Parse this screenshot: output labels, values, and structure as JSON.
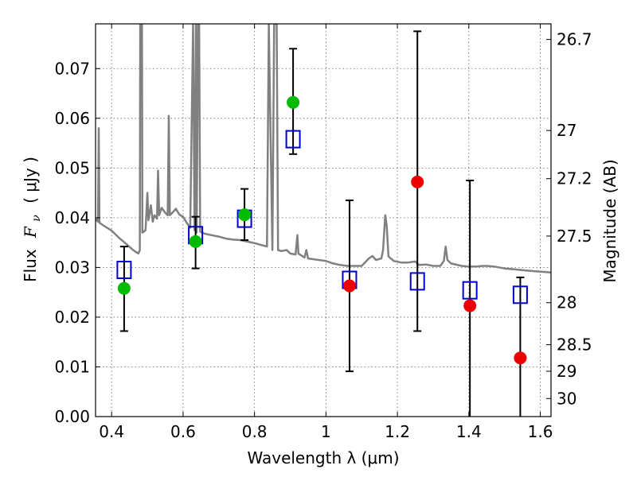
{
  "chart_data": {
    "type": "scatter",
    "xlabel": "Wavelength  λ (μm)",
    "ylabel_text": "Flux",
    "ylabel_var": "F",
    "ylabel_sub": "ν",
    "ylabel_unit": "(  μJy )",
    "y2label": "Magnitude (AB)",
    "xlim": [
      0.355,
      1.63
    ],
    "ylim": [
      0.0,
      0.079
    ],
    "x_ticks": [
      0.4,
      0.6,
      0.8,
      1.0,
      1.2,
      1.4,
      1.6
    ],
    "x_tick_labels": [
      "0.4",
      "0.6",
      "0.8",
      "1",
      "1.2",
      "1.4",
      "1.6"
    ],
    "y_ticks": [
      0.0,
      0.01,
      0.02,
      0.03,
      0.04,
      0.05,
      0.06,
      0.07
    ],
    "y_tick_labels": [
      "0.00",
      "0.01",
      "0.02",
      "0.03",
      "0.04",
      "0.05",
      "0.06",
      "0.07"
    ],
    "mag_ticks": [
      26.7,
      27,
      27.2,
      27.5,
      28,
      28.5,
      29,
      30
    ],
    "mag_tick_labels": [
      "26.7",
      "27",
      "27.2",
      "27.5",
      "28",
      "28.5",
      "29",
      "30"
    ],
    "grid": true,
    "colors": {
      "spectrum": "#808080",
      "model": "#0000cc",
      "green": "#00bb00",
      "red": "#ee0000",
      "error": "#000000"
    },
    "model_points": [
      {
        "x": 0.435,
        "y": 0.0295
      },
      {
        "x": 0.635,
        "y": 0.0365
      },
      {
        "x": 0.772,
        "y": 0.0398
      },
      {
        "x": 0.908,
        "y": 0.0558
      },
      {
        "x": 1.066,
        "y": 0.0275
      },
      {
        "x": 1.256,
        "y": 0.0272
      },
      {
        "x": 1.403,
        "y": 0.0254
      },
      {
        "x": 1.544,
        "y": 0.0245
      }
    ],
    "observed_points": [
      {
        "x": 0.435,
        "y": 0.0258,
        "ylo": 0.0172,
        "yhi": 0.0342,
        "group": "green"
      },
      {
        "x": 0.635,
        "y": 0.0352,
        "ylo": 0.0298,
        "yhi": 0.0402,
        "group": "green"
      },
      {
        "x": 0.772,
        "y": 0.0406,
        "ylo": 0.0355,
        "yhi": 0.0458,
        "group": "green"
      },
      {
        "x": 0.908,
        "y": 0.0632,
        "ylo": 0.0528,
        "yhi": 0.074,
        "group": "green"
      },
      {
        "x": 1.066,
        "y": 0.0263,
        "ylo": 0.0091,
        "yhi": 0.0435,
        "group": "red"
      },
      {
        "x": 1.256,
        "y": 0.0472,
        "ylo": 0.0172,
        "yhi": 0.0775,
        "group": "red"
      },
      {
        "x": 1.403,
        "y": 0.0223,
        "ylo": 0.0,
        "yhi": 0.0475,
        "group": "red"
      },
      {
        "x": 1.544,
        "y": 0.0118,
        "ylo": 0.0,
        "yhi": 0.028,
        "group": "red"
      }
    ],
    "spectrum": [
      [
        0.355,
        0.0398
      ],
      [
        0.362,
        0.0392
      ],
      [
        0.364,
        0.058
      ],
      [
        0.366,
        0.039
      ],
      [
        0.38,
        0.0383
      ],
      [
        0.4,
        0.0374
      ],
      [
        0.42,
        0.036
      ],
      [
        0.44,
        0.0348
      ],
      [
        0.46,
        0.0335
      ],
      [
        0.475,
        0.0328
      ],
      [
        0.479,
        0.0335
      ],
      [
        0.48,
        0.079
      ],
      [
        0.485,
        0.079
      ],
      [
        0.486,
        0.037
      ],
      [
        0.49,
        0.0372
      ],
      [
        0.495,
        0.0375
      ],
      [
        0.5,
        0.045
      ],
      [
        0.503,
        0.0395
      ],
      [
        0.51,
        0.0425
      ],
      [
        0.515,
        0.0392
      ],
      [
        0.52,
        0.0405
      ],
      [
        0.527,
        0.0398
      ],
      [
        0.53,
        0.0495
      ],
      [
        0.533,
        0.0405
      ],
      [
        0.54,
        0.042
      ],
      [
        0.55,
        0.041
      ],
      [
        0.557,
        0.0405
      ],
      [
        0.56,
        0.0605
      ],
      [
        0.563,
        0.0405
      ],
      [
        0.57,
        0.041
      ],
      [
        0.58,
        0.0418
      ],
      [
        0.59,
        0.0406
      ],
      [
        0.6,
        0.0402
      ],
      [
        0.61,
        0.039
      ],
      [
        0.62,
        0.038
      ],
      [
        0.628,
        0.079
      ],
      [
        0.632,
        0.0375
      ],
      [
        0.636,
        0.079
      ],
      [
        0.638,
        0.037
      ],
      [
        0.642,
        0.079
      ],
      [
        0.645,
        0.079
      ],
      [
        0.648,
        0.0372
      ],
      [
        0.66,
        0.0368
      ],
      [
        0.68,
        0.0365
      ],
      [
        0.7,
        0.0362
      ],
      [
        0.72,
        0.0358
      ],
      [
        0.74,
        0.0356
      ],
      [
        0.76,
        0.0355
      ],
      [
        0.78,
        0.0352
      ],
      [
        0.8,
        0.0349
      ],
      [
        0.82,
        0.0345
      ],
      [
        0.835,
        0.0342
      ],
      [
        0.84,
        0.079
      ],
      [
        0.85,
        0.0335
      ],
      [
        0.855,
        0.079
      ],
      [
        0.862,
        0.079
      ],
      [
        0.866,
        0.0335
      ],
      [
        0.875,
        0.0333
      ],
      [
        0.89,
        0.0335
      ],
      [
        0.9,
        0.0328
      ],
      [
        0.915,
        0.0326
      ],
      [
        0.92,
        0.0365
      ],
      [
        0.923,
        0.0328
      ],
      [
        0.94,
        0.032
      ],
      [
        0.945,
        0.0335
      ],
      [
        0.95,
        0.0318
      ],
      [
        0.97,
        0.0316
      ],
      [
        1.0,
        0.0313
      ],
      [
        1.02,
        0.0308
      ],
      [
        1.04,
        0.0305
      ],
      [
        1.06,
        0.0303
      ],
      [
        1.08,
        0.0303
      ],
      [
        1.1,
        0.0303
      ],
      [
        1.12,
        0.0318
      ],
      [
        1.13,
        0.0323
      ],
      [
        1.14,
        0.0315
      ],
      [
        1.155,
        0.0318
      ],
      [
        1.16,
        0.0335
      ],
      [
        1.166,
        0.0405
      ],
      [
        1.17,
        0.0385
      ],
      [
        1.175,
        0.0322
      ],
      [
        1.19,
        0.0313
      ],
      [
        1.21,
        0.031
      ],
      [
        1.23,
        0.031
      ],
      [
        1.25,
        0.0312
      ],
      [
        1.26,
        0.0305
      ],
      [
        1.28,
        0.0306
      ],
      [
        1.3,
        0.0303
      ],
      [
        1.32,
        0.0303
      ],
      [
        1.33,
        0.0313
      ],
      [
        1.335,
        0.0342
      ],
      [
        1.34,
        0.0315
      ],
      [
        1.35,
        0.0308
      ],
      [
        1.38,
        0.0303
      ],
      [
        1.4,
        0.0302
      ],
      [
        1.42,
        0.0302
      ],
      [
        1.44,
        0.0303
      ],
      [
        1.45,
        0.0303
      ],
      [
        1.47,
        0.0302
      ],
      [
        1.5,
        0.0298
      ],
      [
        1.53,
        0.0296
      ],
      [
        1.56,
        0.0294
      ],
      [
        1.59,
        0.0292
      ],
      [
        1.61,
        0.0291
      ],
      [
        1.63,
        0.029
      ]
    ]
  }
}
